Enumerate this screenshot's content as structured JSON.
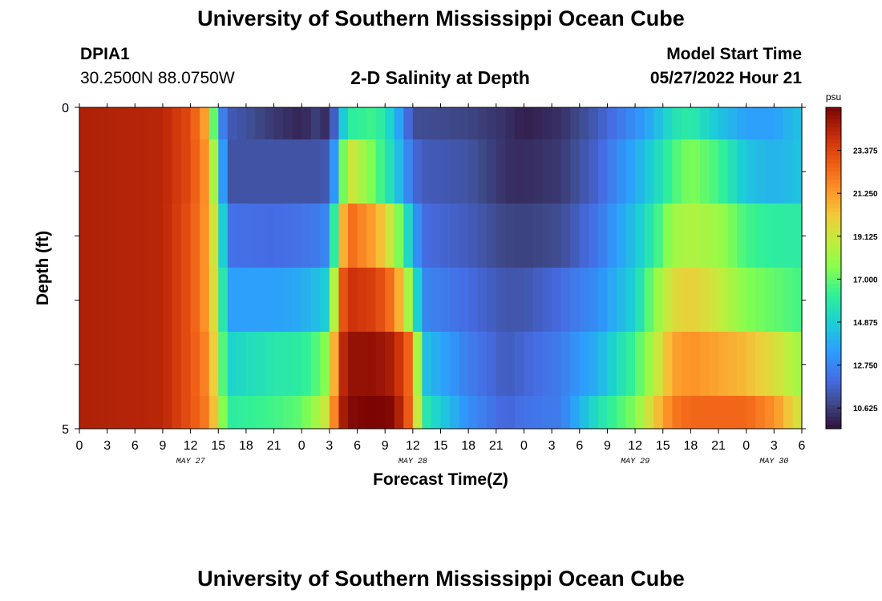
{
  "header": {
    "title": "University of Southern Mississippi Ocean Cube",
    "station_id": "DPIA1",
    "coordinates": "30.2500N  88.0750W",
    "plot_title": "2-D Salinity at Depth",
    "model_start_label": "Model Start Time",
    "model_start_value": "05/27/2022 Hour 21"
  },
  "footer": {
    "title": "University of Southern Mississippi Ocean Cube"
  },
  "chart_data": {
    "type": "heatmap",
    "xlabel": "Forecast Time(Z)",
    "ylabel": "Depth (ft)",
    "y_tick_labels": [
      "0",
      "5"
    ],
    "ylim": [
      0,
      5
    ],
    "x_tick_labels": [
      "0",
      "3",
      "6",
      "9",
      "12",
      "15",
      "18",
      "21",
      "0",
      "3",
      "6",
      "9",
      "12",
      "15",
      "18",
      "21",
      "0",
      "3",
      "6",
      "9",
      "12",
      "15",
      "18",
      "21",
      "0",
      "3",
      "6"
    ],
    "date_labels": [
      {
        "label": "MAY 27",
        "hour_index": 12
      },
      {
        "label": "MAY 28",
        "hour_index": 36
      },
      {
        "label": "MAY 29",
        "hour_index": 60
      },
      {
        "label": "MAY 30",
        "hour_index": 75
      }
    ],
    "x_unit": "hours from 05/27 00Z",
    "x_range": [
      0,
      78
    ],
    "colorbar": {
      "unit": "psu",
      "ticks": [
        "23.375",
        "21.250",
        "19.125",
        "17.000",
        "14.875",
        "12.750",
        "10.625"
      ],
      "range": [
        9.6,
        25.5
      ]
    },
    "depth_layers": [
      "0-0.5",
      "0.5-1.5",
      "1.5-2.5",
      "2.5-3.5",
      "3.5-4.5",
      "4.5-5"
    ],
    "keyframes": [
      {
        "hour": 0,
        "values": [
          24.5,
          24.5,
          24.5,
          24.5,
          24.5,
          24.5
        ]
      },
      {
        "hour": 9,
        "values": [
          24.3,
          24.3,
          24.3,
          24.3,
          24.3,
          24.3
        ]
      },
      {
        "hour": 12,
        "values": [
          23.2,
          23.2,
          23.0,
          23.0,
          23.0,
          23.0
        ]
      },
      {
        "hour": 14,
        "values": [
          20.5,
          21.0,
          21.0,
          21.0,
          21.5,
          21.8
        ]
      },
      {
        "hour": 15,
        "values": [
          13.5,
          15.5,
          17.5,
          18.0,
          18.5,
          19.0
        ]
      },
      {
        "hour": 16,
        "values": [
          11.5,
          11.2,
          12.2,
          13.5,
          15.0,
          16.0
        ]
      },
      {
        "hour": 21,
        "values": [
          10.5,
          11.2,
          12.0,
          13.5,
          15.8,
          16.5
        ]
      },
      {
        "hour": 24,
        "values": [
          10.0,
          11.2,
          12.2,
          13.8,
          16.0,
          17.0
        ]
      },
      {
        "hour": 26,
        "values": [
          10.8,
          11.2,
          12.5,
          14.5,
          17.0,
          18.5
        ]
      },
      {
        "hour": 27,
        "values": [
          9.7,
          11.5,
          13.0,
          15.0,
          18.0,
          19.5
        ]
      },
      {
        "hour": 28,
        "values": [
          13.5,
          15.0,
          19.0,
          22.0,
          23.5,
          24.0
        ]
      },
      {
        "hour": 29,
        "values": [
          16.0,
          19.5,
          22.5,
          24.0,
          25.0,
          25.3
        ]
      },
      {
        "hour": 32,
        "values": [
          16.5,
          17.0,
          21.0,
          23.5,
          25.0,
          25.5
        ]
      },
      {
        "hour": 34,
        "values": [
          14.5,
          15.0,
          18.5,
          22.0,
          24.5,
          25.3
        ]
      },
      {
        "hour": 36,
        "values": [
          11.0,
          12.0,
          14.0,
          17.0,
          22.0,
          22.0
        ]
      },
      {
        "hour": 37,
        "values": [
          11.0,
          11.5,
          12.0,
          12.8,
          14.5,
          16.0
        ]
      },
      {
        "hour": 42,
        "values": [
          10.8,
          11.2,
          11.5,
          12.0,
          12.5,
          13.0
        ]
      },
      {
        "hour": 46,
        "values": [
          10.3,
          10.3,
          10.8,
          11.3,
          11.5,
          11.8
        ]
      },
      {
        "hour": 48,
        "values": [
          9.9,
          10.2,
          10.7,
          11.3,
          11.8,
          12.2
        ]
      },
      {
        "hour": 52,
        "values": [
          10.3,
          10.5,
          11.0,
          12.0,
          12.5,
          12.5
        ]
      },
      {
        "hour": 56,
        "values": [
          11.5,
          11.8,
          12.3,
          13.0,
          14.0,
          15.5
        ]
      },
      {
        "hour": 60,
        "values": [
          13.0,
          13.8,
          14.5,
          15.0,
          16.5,
          17.5
        ]
      },
      {
        "hour": 62,
        "values": [
          14.0,
          15.0,
          16.0,
          17.5,
          18.5,
          20.0
        ]
      },
      {
        "hour": 64,
        "values": [
          15.5,
          16.5,
          18.0,
          19.5,
          21.0,
          22.0
        ]
      },
      {
        "hour": 66,
        "values": [
          16.0,
          17.5,
          18.5,
          20.0,
          21.5,
          22.5
        ]
      },
      {
        "hour": 69,
        "values": [
          14.5,
          16.5,
          18.0,
          19.0,
          21.0,
          22.5
        ]
      },
      {
        "hour": 72,
        "values": [
          13.5,
          14.5,
          16.5,
          17.5,
          20.5,
          22.5
        ]
      },
      {
        "hour": 75,
        "values": [
          13.5,
          14.0,
          16.0,
          17.0,
          19.5,
          21.5
        ]
      },
      {
        "hour": 78,
        "values": [
          14.5,
          14.5,
          16.0,
          16.5,
          18.0,
          19.0
        ]
      }
    ]
  }
}
